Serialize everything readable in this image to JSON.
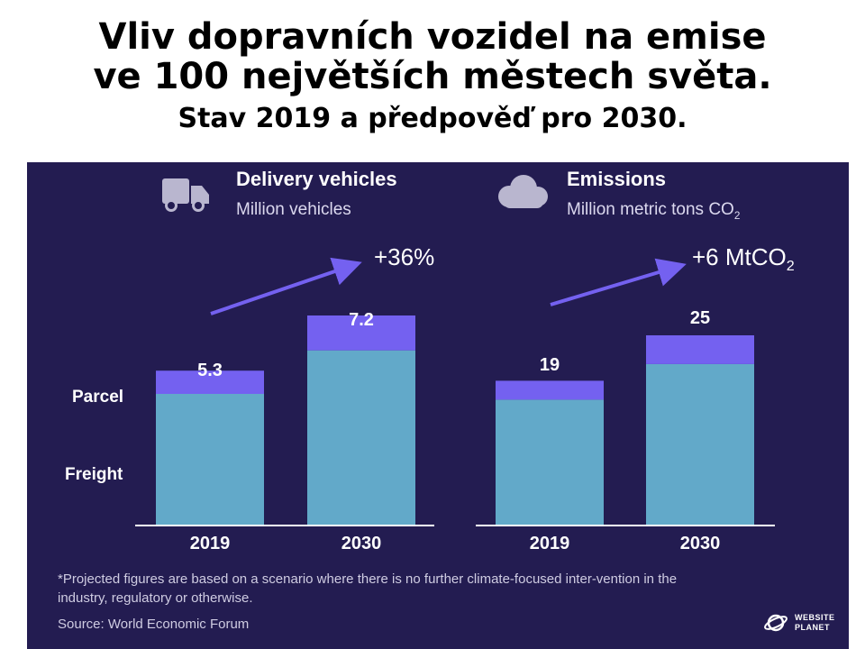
{
  "slide": {
    "title_line1": "Vliv dopravních vozidel na emise",
    "title_line2": "ve 100 největších městech světa.",
    "title_line3": "Stav 2019 a předpověď pro 2030."
  },
  "panel": {
    "background": "#231c51",
    "left_header": {
      "title": "Delivery vehicles",
      "subtitle": "Million vehicles",
      "icon": "truck-icon"
    },
    "right_header": {
      "title": "Emissions",
      "subtitle": "Million metric tons CO",
      "subtitle_sub": "2",
      "icon": "cloud-icon"
    },
    "left_growth": "+36%",
    "right_growth": "+6 MtCO",
    "right_growth_sub": "2",
    "segment_labels": [
      "Parcel",
      "Freight"
    ],
    "footnote": "*Projected figures are based on a scenario where there is no further climate-focused inter-vention in the industry, regulatory or otherwise.",
    "source": "Source: World Economic Forum",
    "brand_line1": "WEBSITE",
    "brand_line2": "PLANET"
  },
  "chart_data": [
    {
      "type": "bar",
      "stacked": true,
      "title": "Delivery vehicles",
      "ylabel": "Million vehicles",
      "categories": [
        "2019",
        "2030"
      ],
      "totals": [
        5.3,
        7.2
      ],
      "series": [
        {
          "name": "Freight",
          "values": [
            4.5,
            6.0
          ],
          "color": "#62a9c9"
        },
        {
          "name": "Parcel",
          "values": [
            0.8,
            1.2
          ],
          "color": "#7461f0"
        }
      ],
      "annotation": "+36%"
    },
    {
      "type": "bar",
      "stacked": true,
      "title": "Emissions",
      "ylabel": "Million metric tons CO2",
      "categories": [
        "2019",
        "2030"
      ],
      "totals": [
        19,
        25
      ],
      "series": [
        {
          "name": "Freight",
          "values": [
            16.5,
            21.2
          ],
          "color": "#62a9c9"
        },
        {
          "name": "Parcel",
          "values": [
            2.5,
            3.8
          ],
          "color": "#7461f0"
        }
      ],
      "annotation": "+6 MtCO2"
    }
  ]
}
